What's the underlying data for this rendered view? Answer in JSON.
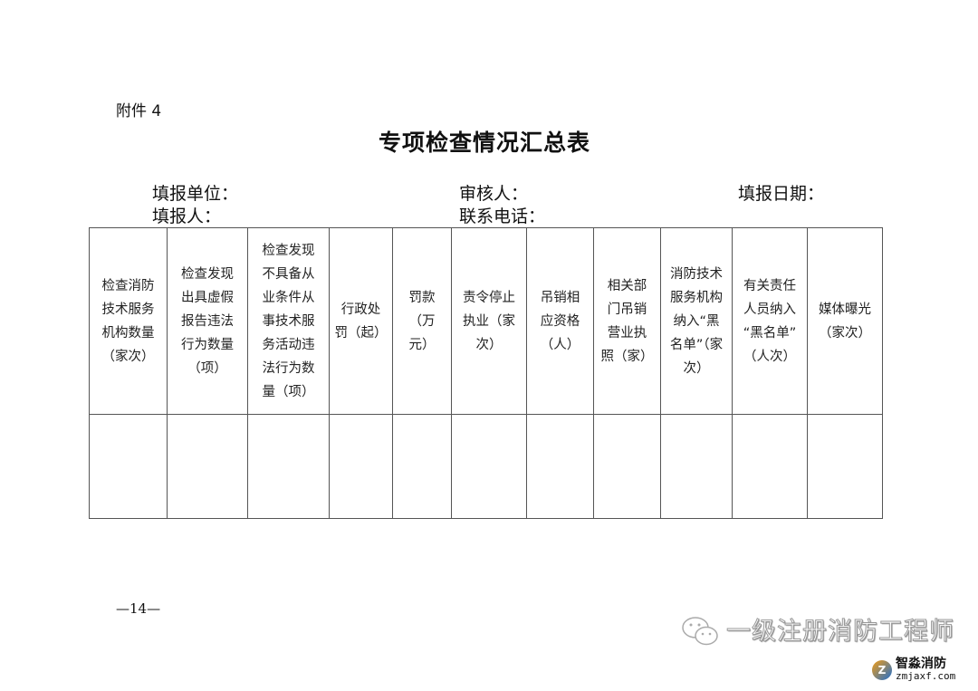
{
  "attachment_label": "附件 4",
  "title": "专项检查情况汇总表",
  "fields": {
    "unit": "填报单位：",
    "reviewer": "审核人：",
    "date": "填报日期：",
    "filler": "填报人：",
    "phone": "联系电话："
  },
  "table": {
    "headers": [
      "检查消防\n技术服务\n机构数量\n（家次）",
      "检查发现\n出具虚假\n报告违法\n行为数量\n（项）",
      "检查发现\n不具备从\n业条件从\n事技术服\n务活动违\n法行为数\n量（项）",
      "行政处\n罚（起）",
      "罚款\n（万\n元）",
      "责令停止\n执业（家\n次）",
      "吊销相\n应资格\n（人）",
      "相关部\n门吊销\n营业执\n照（家）",
      "消防技术\n服务机构\n纳入“黑\n名单”（家\n次）",
      "有关责任\n人员纳入\n“黑名单”\n（人次）",
      "媒体曝光\n（家次）"
    ],
    "rows": [
      [
        "",
        "",
        "",
        "",
        "",
        "",
        "",
        "",
        "",
        "",
        ""
      ]
    ]
  },
  "page_number": "—14—",
  "watermark": {
    "icon": "wechat-icon",
    "text": "一级注册消防工程师",
    "logo_name": "智淼消防",
    "logo_url": "zmjaxf.com"
  }
}
